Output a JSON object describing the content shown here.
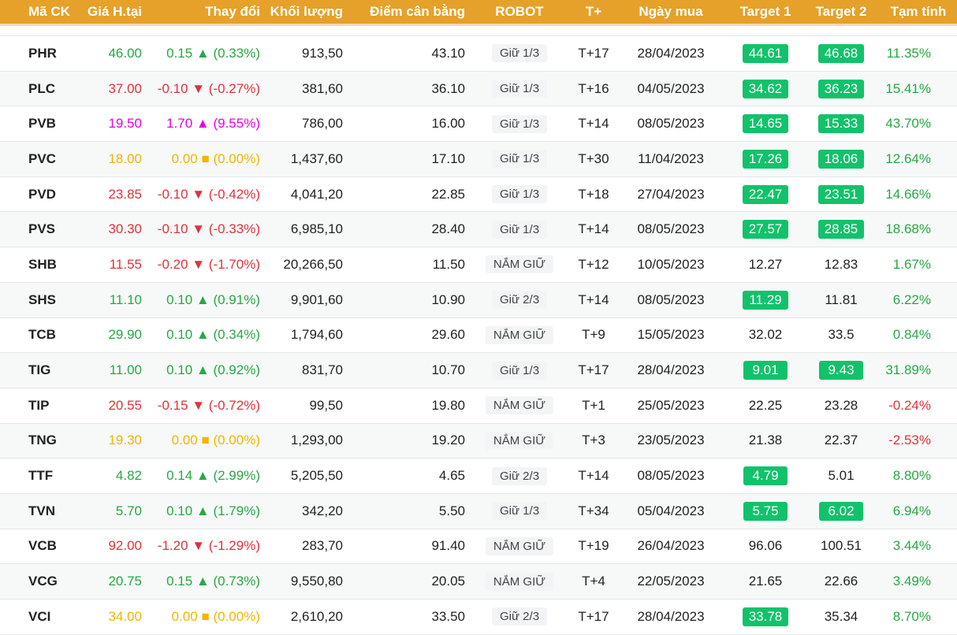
{
  "header": [
    "Mã CK",
    "Giá H.tại",
    "Thay đổi",
    "Khối lượng",
    "Điểm cân bằng",
    "ROBOT",
    "T+",
    "Ngày mua",
    "Target 1",
    "Target 2",
    "Tạm tính"
  ],
  "colors": {
    "header": "#e5a12a",
    "up": "#28a745",
    "down": "#e0323c",
    "ref": "#f5b400",
    "ceiling": "#e600e6",
    "target_hit": "#12c26b"
  },
  "rows": [
    {
      "code": "PHR",
      "price": "46.00",
      "change": "0.15 ▲ (0.33%)",
      "trend": "up",
      "volume": "913,50",
      "balance": "43.10",
      "robot": "Giữ 1/3",
      "t": "T+17",
      "date": "28/04/2023",
      "t1": "44.61",
      "t1_hit": true,
      "t2": "46.68",
      "t2_hit": true,
      "pnl": "11.35%",
      "pnl_trend": "up"
    },
    {
      "code": "PLC",
      "price": "37.00",
      "change": "-0.10 ▼ (-0.27%)",
      "trend": "down",
      "volume": "381,60",
      "balance": "36.10",
      "robot": "Giữ 1/3",
      "t": "T+16",
      "date": "04/05/2023",
      "t1": "34.62",
      "t1_hit": true,
      "t2": "36.23",
      "t2_hit": true,
      "pnl": "15.41%",
      "pnl_trend": "up"
    },
    {
      "code": "PVB",
      "price": "19.50",
      "change": "1.70 ▲ (9.55%)",
      "trend": "ceil",
      "volume": "786,00",
      "balance": "16.00",
      "robot": "Giữ 1/3",
      "t": "T+14",
      "date": "08/05/2023",
      "t1": "14.65",
      "t1_hit": true,
      "t2": "15.33",
      "t2_hit": true,
      "pnl": "43.70%",
      "pnl_trend": "up"
    },
    {
      "code": "PVC",
      "price": "18.00",
      "change": "0.00 ■ (0.00%)",
      "trend": "ref",
      "volume": "1,437,60",
      "balance": "17.10",
      "robot": "Giữ 1/3",
      "t": "T+30",
      "date": "11/04/2023",
      "t1": "17.26",
      "t1_hit": true,
      "t2": "18.06",
      "t2_hit": true,
      "pnl": "12.64%",
      "pnl_trend": "up"
    },
    {
      "code": "PVD",
      "price": "23.85",
      "change": "-0.10 ▼ (-0.42%)",
      "trend": "down",
      "volume": "4,041,20",
      "balance": "22.85",
      "robot": "Giữ 1/3",
      "t": "T+18",
      "date": "27/04/2023",
      "t1": "22.47",
      "t1_hit": true,
      "t2": "23.51",
      "t2_hit": true,
      "pnl": "14.66%",
      "pnl_trend": "up"
    },
    {
      "code": "PVS",
      "price": "30.30",
      "change": "-0.10 ▼ (-0.33%)",
      "trend": "down",
      "volume": "6,985,10",
      "balance": "28.40",
      "robot": "Giữ 1/3",
      "t": "T+14",
      "date": "08/05/2023",
      "t1": "27.57",
      "t1_hit": true,
      "t2": "28.85",
      "t2_hit": true,
      "pnl": "18.68%",
      "pnl_trend": "up"
    },
    {
      "code": "SHB",
      "price": "11.55",
      "change": "-0.20 ▼ (-1.70%)",
      "trend": "down",
      "volume": "20,266,50",
      "balance": "11.50",
      "robot": "NẮM GIỮ",
      "t": "T+12",
      "date": "10/05/2023",
      "t1": "12.27",
      "t1_hit": false,
      "t2": "12.83",
      "t2_hit": false,
      "pnl": "1.67%",
      "pnl_trend": "up"
    },
    {
      "code": "SHS",
      "price": "11.10",
      "change": "0.10 ▲ (0.91%)",
      "trend": "up",
      "volume": "9,901,60",
      "balance": "10.90",
      "robot": "Giữ 2/3",
      "t": "T+14",
      "date": "08/05/2023",
      "t1": "11.29",
      "t1_hit": true,
      "t2": "11.81",
      "t2_hit": false,
      "pnl": "6.22%",
      "pnl_trend": "up"
    },
    {
      "code": "TCB",
      "price": "29.90",
      "change": "0.10 ▲ (0.34%)",
      "trend": "up",
      "volume": "1,794,60",
      "balance": "29.60",
      "robot": "NẮM GIỮ",
      "t": "T+9",
      "date": "15/05/2023",
      "t1": "32.02",
      "t1_hit": false,
      "t2": "33.5",
      "t2_hit": false,
      "pnl": "0.84%",
      "pnl_trend": "up"
    },
    {
      "code": "TIG",
      "price": "11.00",
      "change": "0.10 ▲ (0.92%)",
      "trend": "up",
      "volume": "831,70",
      "balance": "10.70",
      "robot": "Giữ 1/3",
      "t": "T+17",
      "date": "28/04/2023",
      "t1": "9.01",
      "t1_hit": true,
      "t2": "9.43",
      "t2_hit": true,
      "pnl": "31.89%",
      "pnl_trend": "up"
    },
    {
      "code": "TIP",
      "price": "20.55",
      "change": "-0.15 ▼ (-0.72%)",
      "trend": "down",
      "volume": "99,50",
      "balance": "19.80",
      "robot": "NẮM GIỮ",
      "t": "T+1",
      "date": "25/05/2023",
      "t1": "22.25",
      "t1_hit": false,
      "t2": "23.28",
      "t2_hit": false,
      "pnl": "-0.24%",
      "pnl_trend": "down"
    },
    {
      "code": "TNG",
      "price": "19.30",
      "change": "0.00 ■ (0.00%)",
      "trend": "ref",
      "volume": "1,293,00",
      "balance": "19.20",
      "robot": "NẮM GIỮ",
      "t": "T+3",
      "date": "23/05/2023",
      "t1": "21.38",
      "t1_hit": false,
      "t2": "22.37",
      "t2_hit": false,
      "pnl": "-2.53%",
      "pnl_trend": "down"
    },
    {
      "code": "TTF",
      "price": "4.82",
      "change": "0.14 ▲ (2.99%)",
      "trend": "up",
      "volume": "5,205,50",
      "balance": "4.65",
      "robot": "Giữ 2/3",
      "t": "T+14",
      "date": "08/05/2023",
      "t1": "4.79",
      "t1_hit": true,
      "t2": "5.01",
      "t2_hit": false,
      "pnl": "8.80%",
      "pnl_trend": "up"
    },
    {
      "code": "TVN",
      "price": "5.70",
      "change": "0.10 ▲ (1.79%)",
      "trend": "up",
      "volume": "342,20",
      "balance": "5.50",
      "robot": "Giữ 1/3",
      "t": "T+34",
      "date": "05/04/2023",
      "t1": "5.75",
      "t1_hit": true,
      "t2": "6.02",
      "t2_hit": true,
      "pnl": "6.94%",
      "pnl_trend": "up"
    },
    {
      "code": "VCB",
      "price": "92.00",
      "change": "-1.20 ▼ (-1.29%)",
      "trend": "down",
      "volume": "283,70",
      "balance": "91.40",
      "robot": "NẮM GIỮ",
      "t": "T+19",
      "date": "26/04/2023",
      "t1": "96.06",
      "t1_hit": false,
      "t2": "100.51",
      "t2_hit": false,
      "pnl": "3.44%",
      "pnl_trend": "up"
    },
    {
      "code": "VCG",
      "price": "20.75",
      "change": "0.15 ▲ (0.73%)",
      "trend": "up",
      "volume": "9,550,80",
      "balance": "20.05",
      "robot": "NẮM GIỮ",
      "t": "T+4",
      "date": "22/05/2023",
      "t1": "21.65",
      "t1_hit": false,
      "t2": "22.66",
      "t2_hit": false,
      "pnl": "3.49%",
      "pnl_trend": "up"
    },
    {
      "code": "VCI",
      "price": "34.00",
      "change": "0.00 ■ (0.00%)",
      "trend": "ref",
      "volume": "2,610,20",
      "balance": "33.50",
      "robot": "Giữ 2/3",
      "t": "T+17",
      "date": "28/04/2023",
      "t1": "33.78",
      "t1_hit": true,
      "t2": "35.34",
      "t2_hit": false,
      "pnl": "8.70%",
      "pnl_trend": "up"
    }
  ]
}
